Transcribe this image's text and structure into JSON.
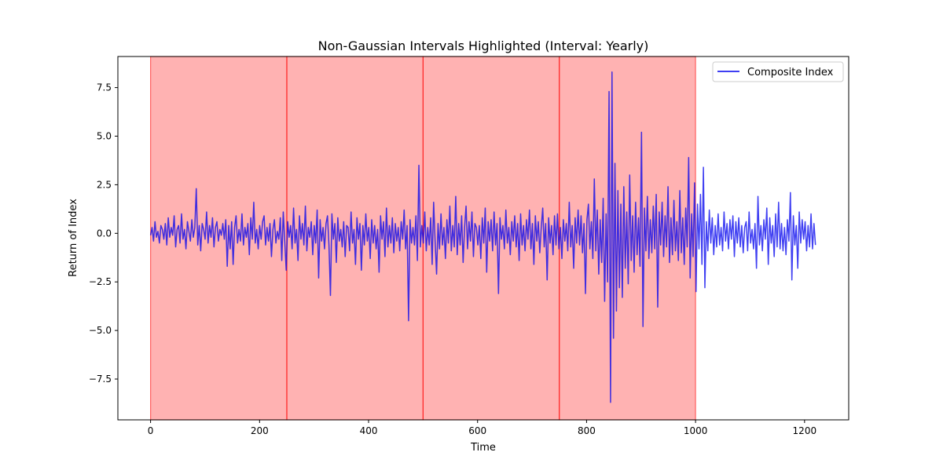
{
  "chart_data": {
    "type": "line",
    "title": "Non-Gaussian Intervals Highlighted (Interval: Yearly)",
    "xlabel": "Time",
    "ylabel": "Return of Index",
    "xlim": [
      -60,
      1281
    ],
    "ylim": [
      -9.6,
      9.1
    ],
    "x_ticks": [
      0,
      200,
      400,
      600,
      800,
      1000,
      1200
    ],
    "x_tick_labels": [
      "0",
      "200",
      "400",
      "600",
      "800",
      "1000",
      "1200"
    ],
    "y_ticks": [
      7.5,
      5.0,
      2.5,
      0.0,
      -2.5,
      -5.0,
      -7.5
    ],
    "y_tick_labels": [
      "7.5",
      "5.0",
      "2.5",
      "0.0",
      "−2.5",
      "−5.0",
      "−7.5"
    ],
    "grid": false,
    "legend": {
      "placement": "top-right",
      "entries": [
        "Composite Index"
      ]
    },
    "highlighted_intervals": [
      [
        0,
        250
      ],
      [
        250,
        500
      ],
      [
        500,
        750
      ],
      [
        750,
        1000
      ]
    ],
    "highlight_color": "#ff0000",
    "series": [
      {
        "name": "Composite Index",
        "color": "#0000ee",
        "x_start": 0,
        "x_end": 1220,
        "values": [
          -0.1,
          0.3,
          -0.4,
          0.6,
          -0.2,
          0.1,
          -0.5,
          0.4,
          0.2,
          -0.3,
          0.5,
          -0.6,
          0.8,
          -0.2,
          0.3,
          -0.1,
          0.9,
          -0.7,
          0.2,
          0.4,
          -0.5,
          1.0,
          -0.3,
          0.2,
          -0.8,
          0.6,
          0.1,
          -0.4,
          0.7,
          -0.2,
          0.3,
          2.3,
          -0.6,
          0.4,
          -0.9,
          0.5,
          0.2,
          -0.3,
          1.1,
          -0.5,
          0.4,
          -0.2,
          0.8,
          -0.7,
          0.3,
          0.6,
          -0.4,
          0.2,
          -0.1,
          0.5,
          -0.3,
          0.7,
          -1.7,
          0.4,
          -0.8,
          0.6,
          -1.6,
          0.3,
          0.9,
          -0.5,
          0.2,
          -0.4,
          1.0,
          -0.6,
          0.3,
          -0.2,
          0.5,
          -1.1,
          0.8,
          -0.3,
          1.6,
          -0.5,
          0.2,
          -0.8,
          0.4,
          -0.3,
          0.6,
          0.9,
          -0.6,
          0.3,
          -0.4,
          0.5,
          -1.2,
          0.2,
          0.7,
          -0.5,
          0.1,
          -0.3,
          0.8,
          -1.4,
          1.1,
          -0.4,
          -1.9,
          0.6,
          -0.2,
          0.4,
          -0.8,
          1.3,
          -0.5,
          0.2,
          -1.4,
          0.9,
          -0.3,
          0.5,
          -0.6,
          1.4,
          -0.9,
          0.3,
          -0.2,
          0.6,
          -1.1,
          0.4,
          -0.5,
          1.2,
          -2.3,
          0.7,
          -0.4,
          0.3,
          -0.8,
          0.5,
          0.9,
          -0.6,
          -3.2,
          1.0,
          -0.3,
          0.5,
          -1.5,
          0.8,
          -0.4,
          0.2,
          -0.7,
          0.6,
          -1.2,
          0.4,
          0.3,
          -0.9,
          1.1,
          -0.5,
          0.2,
          -1.6,
          0.8,
          -0.3,
          0.5,
          -1.9,
          0.4,
          -0.6,
          1.0,
          -0.4,
          0.3,
          -1.3,
          0.7,
          -0.5,
          0.4,
          -0.8,
          0.2,
          -2.0,
          0.9,
          -0.3,
          0.6,
          -1.2,
          1.3,
          -0.7,
          0.4,
          -0.5,
          0.8,
          -1.0,
          0.5,
          -0.4,
          0.3,
          -0.9,
          0.6,
          -0.3,
          1.2,
          -0.8,
          0.4,
          -4.5,
          0.7,
          -0.5,
          0.3,
          -0.6,
          0.9,
          -1.4,
          3.5,
          -0.7,
          0.4,
          -0.5,
          1.1,
          -0.9,
          0.3,
          -0.6,
          0.8,
          -1.6,
          1.6,
          -0.4,
          -2.1,
          0.5,
          -0.8,
          1.0,
          -0.6,
          0.3,
          -1.3,
          0.7,
          -0.5,
          1.4,
          -0.9,
          0.4,
          -0.7,
          1.9,
          -1.1,
          0.5,
          -0.6,
          0.9,
          -1.5,
          0.3,
          1.4,
          -0.8,
          0.6,
          -0.4,
          1.1,
          -1.2,
          0.5,
          0.3,
          -0.6,
          0.4,
          -1.3,
          0.8,
          -0.5,
          1.3,
          -2.0,
          0.6,
          -0.4,
          0.7,
          -0.9,
          1.1,
          -0.6,
          0.5,
          -3.1,
          0.8,
          -0.3,
          0.4,
          -0.8,
          1.2,
          -0.5,
          0.3,
          -1.1,
          0.6,
          -0.4,
          0.9,
          -0.7,
          0.5,
          -1.4,
          1.0,
          -0.6,
          0.4,
          -0.9,
          0.7,
          -0.3,
          1.2,
          -0.8,
          0.5,
          -1.6,
          0.9,
          -0.4,
          0.6,
          -1.0,
          0.3,
          1.3,
          -0.7,
          0.5,
          -2.4,
          0.8,
          -0.5,
          0.4,
          -1.1,
          0.9,
          -0.6,
          1.0,
          -0.8,
          0.3,
          -1.3,
          0.7,
          -0.4,
          0.5,
          -0.9,
          1.6,
          -0.7,
          0.4,
          -1.8,
          0.8,
          -0.5,
          1.2,
          -0.6,
          0.9,
          -1.0,
          0.5,
          -3.1,
          0.7,
          1.5,
          -0.8,
          0.6,
          -1.3,
          2.8,
          -0.9,
          1.2,
          -2.1,
          0.7,
          -1.5,
          1.8,
          -3.5,
          1.0,
          -2.5,
          7.3,
          -8.7,
          8.3,
          -5.4,
          3.6,
          -4.0,
          2.2,
          -2.8,
          1.5,
          -3.3,
          2.4,
          -1.8,
          1.1,
          -2.6,
          3.0,
          -1.4,
          0.9,
          -2.0,
          1.6,
          -1.1,
          0.8,
          -1.7,
          5.2,
          -4.8,
          1.3,
          -0.9,
          1.9,
          -1.3,
          0.7,
          -1.0,
          1.4,
          -0.8,
          2.0,
          -3.8,
          1.1,
          -0.6,
          1.6,
          -1.2,
          0.9,
          -0.7,
          2.4,
          -1.5,
          0.8,
          -1.1,
          1.7,
          -0.9,
          0.6,
          -1.4,
          2.2,
          -1.0,
          0.8,
          -1.6,
          1.3,
          -0.7,
          3.9,
          -2.3,
          1.0,
          -1.2,
          2.6,
          -3.0,
          1.5,
          -0.8,
          2.0,
          -1.6,
          3.4,
          -2.8,
          0.6,
          -0.9,
          1.2,
          -0.5,
          0.8,
          -1.1,
          0.4,
          -0.7,
          1.0,
          -0.6,
          0.3,
          -0.9,
          1.1,
          -0.4,
          0.5,
          -0.8,
          0.7,
          -0.3,
          0.9,
          -1.2,
          0.6,
          -0.5,
          0.8,
          -0.7,
          0.4,
          -1.0,
          0.3,
          0.6,
          -0.9,
          1.1,
          -0.5,
          0.2,
          -0.8,
          0.5,
          -1.8,
          1.9,
          -0.6,
          0.4,
          -0.9,
          0.7,
          -0.3,
          1.3,
          -1.6,
          0.8,
          -0.5,
          0.4,
          -1.2,
          1.0,
          -0.7,
          1.6,
          -0.8,
          0.5,
          -0.9,
          0.3,
          -1.1,
          0.7,
          -0.4,
          2.1,
          -2.4,
          0.9,
          -0.6,
          0.4,
          -1.8,
          1.1,
          -0.5,
          0.7,
          -0.3,
          0.6,
          -0.9,
          0.4,
          -0.7,
          1.0,
          -0.8,
          0.5,
          -0.6
        ]
      }
    ]
  }
}
